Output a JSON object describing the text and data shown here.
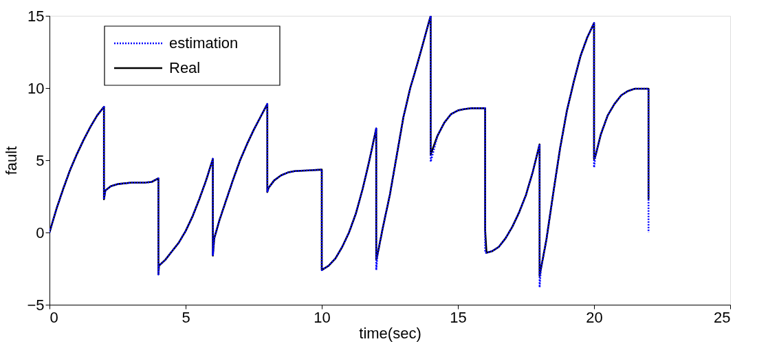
{
  "chart_data": {
    "type": "line",
    "xlabel": "time(sec)",
    "ylabel": "fault",
    "xlim": [
      0,
      25
    ],
    "ylim": [
      -5,
      15
    ],
    "xticks": [
      0,
      5,
      10,
      15,
      20,
      25
    ],
    "yticks": [
      -5,
      0,
      5,
      10,
      15
    ],
    "grid": false,
    "legend": "top left",
    "marker": "none",
    "series": [
      {
        "name": "estimation",
        "color": "#0000ff",
        "line_style": "dotted",
        "x": [
          0,
          0.25,
          0.5,
          0.75,
          1,
          1.25,
          1.5,
          1.75,
          2,
          2,
          2.05,
          2.25,
          2.5,
          3,
          3.5,
          3.75,
          4,
          4,
          4.02,
          4.25,
          4.5,
          4.75,
          5,
          5.25,
          5.5,
          5.75,
          6,
          6,
          6.05,
          6.25,
          6.5,
          6.75,
          7,
          7.25,
          7.5,
          7.75,
          8,
          8,
          8.05,
          8.25,
          8.5,
          8.75,
          9,
          9.5,
          10,
          10,
          10.25,
          10.5,
          10.75,
          11,
          11.25,
          11.5,
          11.75,
          12,
          12,
          12.05,
          12.25,
          12.5,
          12.75,
          13,
          13.25,
          13.5,
          13.75,
          14,
          14,
          14.25,
          14.5,
          14.75,
          15,
          15.25,
          15.5,
          16,
          16,
          16.05,
          16.25,
          16.5,
          16.75,
          17,
          17.25,
          17.5,
          17.75,
          18,
          18,
          18.05,
          18.25,
          18.5,
          18.75,
          19,
          19.25,
          19.5,
          19.75,
          20,
          20,
          20.05,
          20.25,
          20.5,
          20.75,
          21,
          21.25,
          21.5,
          22,
          22
        ],
        "values": [
          0,
          1.6,
          3.0,
          4.3,
          5.4,
          6.4,
          7.3,
          8.1,
          8.7,
          2.3,
          2.9,
          3.2,
          3.35,
          3.45,
          3.45,
          3.5,
          3.75,
          -2.9,
          -2.3,
          -1.9,
          -1.3,
          -0.7,
          0.1,
          1.1,
          2.3,
          3.6,
          5.1,
          -1.6,
          -0.4,
          0.9,
          2.3,
          3.7,
          5.0,
          6.1,
          7.1,
          8.0,
          8.9,
          2.8,
          3.1,
          3.6,
          3.95,
          4.15,
          4.25,
          4.3,
          4.35,
          -2.6,
          -2.3,
          -1.8,
          -1.0,
          0.0,
          1.3,
          3.0,
          5.0,
          7.2,
          -2.6,
          -1.5,
          0.4,
          2.6,
          5.3,
          8.0,
          10.0,
          11.6,
          13.3,
          15.0,
          4.9,
          6.7,
          7.6,
          8.2,
          8.45,
          8.55,
          8.6,
          8.6,
          -1.4,
          -1.4,
          -1.3,
          -1.0,
          -0.4,
          0.4,
          1.4,
          2.6,
          4.2,
          6.1,
          -3.8,
          -2.5,
          -0.5,
          2.7,
          5.8,
          8.4,
          10.4,
          12.2,
          13.5,
          14.5,
          4.5,
          5.3,
          6.8,
          8.1,
          8.9,
          9.5,
          9.8,
          9.95,
          9.95,
          0
        ]
      },
      {
        "name": "Real",
        "color": "#000000",
        "line_style": "solid",
        "x": [
          0,
          0.25,
          0.5,
          0.75,
          1,
          1.25,
          1.5,
          1.75,
          2,
          2,
          2.05,
          2.25,
          2.5,
          3,
          3.5,
          3.75,
          4,
          4,
          4.02,
          4.25,
          4.5,
          4.75,
          5,
          5.25,
          5.5,
          5.75,
          6,
          6,
          6.05,
          6.25,
          6.5,
          6.75,
          7,
          7.25,
          7.5,
          7.75,
          8,
          8,
          8.05,
          8.25,
          8.5,
          8.75,
          9,
          9.5,
          10,
          10,
          10.25,
          10.5,
          10.75,
          11,
          11.25,
          11.5,
          11.75,
          12,
          12,
          12.05,
          12.25,
          12.5,
          12.75,
          13,
          13.25,
          13.5,
          13.75,
          14,
          14,
          14.25,
          14.5,
          14.75,
          15,
          15.25,
          15.5,
          16,
          16,
          16.05,
          16.25,
          16.5,
          16.75,
          17,
          17.25,
          17.5,
          17.75,
          18,
          18,
          18.05,
          18.25,
          18.5,
          18.75,
          19,
          19.25,
          19.5,
          19.75,
          20,
          20,
          20.05,
          20.25,
          20.5,
          20.75,
          21,
          21.25,
          21.5,
          22,
          22
        ],
        "values": [
          0,
          1.6,
          3.0,
          4.3,
          5.4,
          6.4,
          7.3,
          8.1,
          8.7,
          2.3,
          2.9,
          3.2,
          3.35,
          3.45,
          3.45,
          3.5,
          3.75,
          -2.9,
          -2.3,
          -1.9,
          -1.3,
          -0.7,
          0.1,
          1.1,
          2.3,
          3.6,
          5.1,
          -1.6,
          -0.4,
          0.9,
          2.3,
          3.7,
          5.0,
          6.1,
          7.1,
          8.0,
          8.9,
          2.8,
          3.1,
          3.6,
          3.95,
          4.15,
          4.25,
          4.3,
          4.35,
          -2.6,
          -2.3,
          -1.8,
          -1.0,
          0.0,
          1.3,
          3.0,
          5.0,
          7.2,
          -1.9,
          -1.5,
          0.4,
          2.6,
          5.3,
          8.0,
          10.0,
          11.6,
          13.3,
          15.0,
          5.4,
          6.7,
          7.6,
          8.2,
          8.45,
          8.55,
          8.6,
          8.6,
          0.2,
          -1.4,
          -1.3,
          -1.0,
          -0.4,
          0.4,
          1.4,
          2.6,
          4.2,
          6.1,
          -3.0,
          -2.5,
          -0.5,
          2.7,
          5.8,
          8.4,
          10.4,
          12.2,
          13.5,
          14.5,
          5.1,
          5.3,
          6.8,
          8.1,
          8.9,
          9.5,
          9.8,
          9.95,
          9.95,
          2.3
        ]
      }
    ]
  }
}
